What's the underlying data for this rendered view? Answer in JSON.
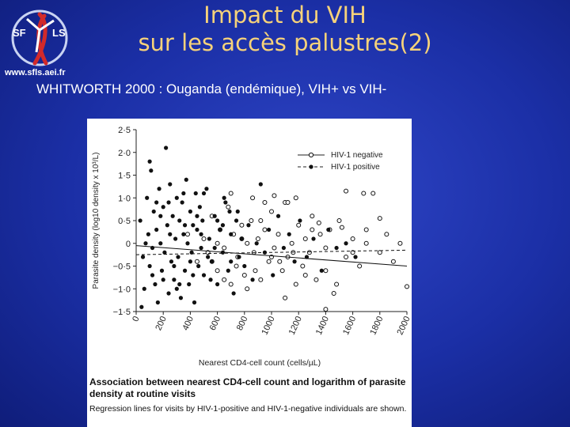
{
  "logo": {
    "text_left": "SF",
    "text_right": "LS",
    "url": "www.sfls.aei.fr"
  },
  "slide": {
    "title_line1": "Impact du VIH",
    "title_line2": "sur les accès palustres(2)",
    "subtitle": "WHITWORTH 2000 : Ouganda (endémique), VIH+ vs VIH-"
  },
  "figure": {
    "caption_title": "Association between nearest CD4-cell count and logarithm of parasite density at routine visits",
    "caption_text": "Regression lines for visits by HIV-1-positive and HIV-1-negative individuals are shown."
  },
  "chart_data": {
    "type": "scatter",
    "xlabel": "Nearest CD4-cell count (cells/µL)",
    "ylabel": "Parasite density (log10 density x 10³/L)",
    "xlim": [
      0,
      2000
    ],
    "ylim": [
      -1.5,
      2.5
    ],
    "x_ticks": [
      "0",
      "200",
      "400",
      "600",
      "800",
      "1000",
      "1200",
      "1400",
      "1600",
      "1800",
      "2000"
    ],
    "y_ticks": [
      "2·5",
      "2·0",
      "1·5",
      "1·0",
      "0·5",
      "0",
      "−0·5",
      "−1·0",
      "−1·5"
    ],
    "legend_position": "top-right",
    "grid": false,
    "series": [
      {
        "name": "HIV-1 negative",
        "marker": "open-circle",
        "line_style": "solid",
        "regression": {
          "x": [
            0,
            2000
          ],
          "y": [
            -0.05,
            -0.5
          ]
        },
        "points": [
          [
            380,
            0.2
          ],
          [
            450,
            -0.4
          ],
          [
            500,
            0.1
          ],
          [
            530,
            -0.2
          ],
          [
            560,
            0.6
          ],
          [
            600,
            -0.6
          ],
          [
            620,
            0.3
          ],
          [
            650,
            -0.1
          ],
          [
            680,
            0.8
          ],
          [
            700,
            -0.9
          ],
          [
            720,
            0.2
          ],
          [
            750,
            -0.3
          ],
          [
            780,
            0.4
          ],
          [
            800,
            -0.7
          ],
          [
            820,
            0.0
          ],
          [
            850,
            0.5
          ],
          [
            870,
            -0.2
          ],
          [
            900,
            0.1
          ],
          [
            920,
            -0.8
          ],
          [
            950,
            0.3
          ],
          [
            980,
            -0.4
          ],
          [
            1000,
            0.7
          ],
          [
            1020,
            -0.1
          ],
          [
            1050,
            0.2
          ],
          [
            1080,
            -0.6
          ],
          [
            1100,
            0.9
          ],
          [
            1120,
            -0.3
          ],
          [
            1150,
            0.0
          ],
          [
            1180,
            -0.9
          ],
          [
            1200,
            0.4
          ],
          [
            1230,
            -0.5
          ],
          [
            1250,
            0.1
          ],
          [
            1280,
            -0.2
          ],
          [
            1300,
            0.6
          ],
          [
            1330,
            -0.8
          ],
          [
            1360,
            0.2
          ],
          [
            1400,
            -0.1
          ],
          [
            1430,
            0.3
          ],
          [
            1460,
            -1.1
          ],
          [
            1500,
            0.5
          ],
          [
            1550,
            -0.3
          ],
          [
            1600,
            0.1
          ],
          [
            1650,
            -0.5
          ],
          [
            1700,
            0.3
          ],
          [
            1750,
            1.1
          ],
          [
            1800,
            -0.2
          ],
          [
            1850,
            0.2
          ],
          [
            1900,
            -0.4
          ],
          [
            1950,
            0.0
          ],
          [
            2000,
            -0.95
          ],
          [
            700,
            1.1
          ],
          [
            860,
            1.0
          ],
          [
            1020,
            1.05
          ],
          [
            1180,
            1.0
          ],
          [
            1550,
            1.15
          ],
          [
            1680,
            1.1
          ],
          [
            950,
            0.9
          ],
          [
            1120,
            0.9
          ],
          [
            1350,
            0.45
          ],
          [
            1700,
            0.0
          ],
          [
            600,
            0.0
          ],
          [
            740,
            -0.5
          ],
          [
            880,
            -0.6
          ],
          [
            1000,
            -0.3
          ],
          [
            1160,
            -0.2
          ],
          [
            1250,
            -0.7
          ],
          [
            1400,
            -0.6
          ],
          [
            1480,
            -0.9
          ],
          [
            1600,
            -0.2
          ],
          [
            1800,
            0.55
          ],
          [
            650,
            -0.8
          ],
          [
            780,
            0.1
          ],
          [
            920,
            0.5
          ],
          [
            1060,
            -0.4
          ],
          [
            1300,
            0.3
          ],
          [
            1520,
            0.35
          ],
          [
            1400,
            -1.45
          ],
          [
            1100,
            -1.2
          ],
          [
            820,
            -1.0
          ],
          [
            560,
            -0.4
          ]
        ]
      },
      {
        "name": "HIV-1 positive",
        "marker": "filled-circle",
        "line_style": "dashed",
        "regression": {
          "x": [
            0,
            2000
          ],
          "y": [
            -0.25,
            -0.15
          ]
        },
        "points": [
          [
            30,
            0.5
          ],
          [
            50,
            -0.3
          ],
          [
            60,
            -1.0
          ],
          [
            80,
            1.0
          ],
          [
            90,
            0.2
          ],
          [
            100,
            -0.5
          ],
          [
            110,
            1.6
          ],
          [
            120,
            -0.1
          ],
          [
            130,
            0.7
          ],
          [
            140,
            -0.9
          ],
          [
            150,
            0.3
          ],
          [
            160,
            -1.3
          ],
          [
            170,
            1.2
          ],
          [
            180,
            0.0
          ],
          [
            190,
            -0.6
          ],
          [
            200,
            0.8
          ],
          [
            210,
            -0.2
          ],
          [
            220,
            2.1
          ],
          [
            230,
            0.4
          ],
          [
            240,
            -1.1
          ],
          [
            250,
            1.3
          ],
          [
            260,
            -0.4
          ],
          [
            270,
            0.6
          ],
          [
            280,
            -0.8
          ],
          [
            290,
            0.1
          ],
          [
            300,
            1.0
          ],
          [
            310,
            -0.3
          ],
          [
            320,
            0.5
          ],
          [
            330,
            -1.2
          ],
          [
            340,
            0.9
          ],
          [
            350,
            0.2
          ],
          [
            360,
            -0.6
          ],
          [
            370,
            1.4
          ],
          [
            380,
            0.0
          ],
          [
            390,
            -0.9
          ],
          [
            400,
            0.7
          ],
          [
            410,
            -0.2
          ],
          [
            420,
            0.4
          ],
          [
            430,
            -1.3
          ],
          [
            440,
            1.1
          ],
          [
            450,
            0.3
          ],
          [
            460,
            -0.5
          ],
          [
            470,
            0.8
          ],
          [
            480,
            -0.1
          ],
          [
            490,
            0.5
          ],
          [
            500,
            -0.7
          ],
          [
            520,
            1.2
          ],
          [
            540,
            0.1
          ],
          [
            560,
            -0.4
          ],
          [
            580,
            0.6
          ],
          [
            600,
            -0.9
          ],
          [
            620,
            0.3
          ],
          [
            640,
            -0.2
          ],
          [
            660,
            0.9
          ],
          [
            680,
            -0.6
          ],
          [
            700,
            0.2
          ],
          [
            720,
            -1.1
          ],
          [
            740,
            0.5
          ],
          [
            760,
            -0.3
          ],
          [
            780,
            0.1
          ],
          [
            800,
            -0.5
          ],
          [
            830,
            0.4
          ],
          [
            860,
            -0.8
          ],
          [
            890,
            0.0
          ],
          [
            920,
            1.3
          ],
          [
            950,
            -0.2
          ],
          [
            980,
            0.3
          ],
          [
            1010,
            -0.7
          ],
          [
            1050,
            0.6
          ],
          [
            1090,
            -0.1
          ],
          [
            1130,
            0.2
          ],
          [
            1170,
            -0.4
          ],
          [
            1210,
            0.5
          ],
          [
            1260,
            -0.3
          ],
          [
            1310,
            0.1
          ],
          [
            1370,
            -0.6
          ],
          [
            1420,
            0.3
          ],
          [
            1480,
            -0.1
          ],
          [
            1550,
            0.0
          ],
          [
            1620,
            -0.3
          ],
          [
            40,
            -1.4
          ],
          [
            70,
            0.0
          ],
          [
            100,
            1.8
          ],
          [
            150,
            0.9
          ],
          [
            200,
            -0.8
          ],
          [
            250,
            0.2
          ],
          [
            300,
            -1.0
          ],
          [
            350,
            1.1
          ],
          [
            400,
            -0.4
          ],
          [
            450,
            0.6
          ],
          [
            500,
            1.1
          ],
          [
            550,
            -0.8
          ],
          [
            600,
            0.5
          ],
          [
            650,
            1.0
          ],
          [
            700,
            -0.4
          ],
          [
            750,
            0.7
          ],
          [
            120,
            -0.7
          ],
          [
            180,
            0.6
          ],
          [
            240,
            0.9
          ],
          [
            280,
            -0.5
          ],
          [
            320,
            -0.9
          ],
          [
            360,
            0.4
          ],
          [
            420,
            -0.7
          ],
          [
            480,
            0.2
          ],
          [
            530,
            -0.3
          ],
          [
            580,
            -0.1
          ],
          [
            640,
            0.4
          ],
          [
            690,
            0.7
          ]
        ]
      }
    ]
  }
}
